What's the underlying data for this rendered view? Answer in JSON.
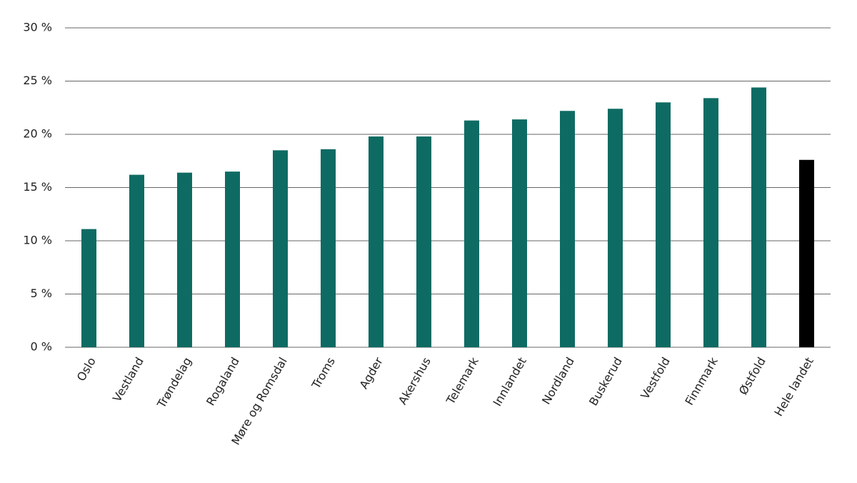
{
  "chart_data": {
    "type": "bar",
    "categories": [
      "Oslo",
      "Vestland",
      "Trøndelag",
      "Rogaland",
      "Møre og Romsdal",
      "Troms",
      "Agder",
      "Akershus",
      "Telemark",
      "Innlandet",
      "Nordland",
      "Buskerud",
      "Vestfold",
      "Finnmark",
      "Østfold",
      "Hele landet"
    ],
    "values": [
      11.1,
      16.2,
      16.4,
      16.5,
      18.5,
      18.6,
      19.8,
      19.8,
      21.3,
      21.4,
      22.2,
      22.4,
      23.0,
      23.4,
      24.4,
      17.6
    ],
    "colors": [
      "#0e6b63",
      "#0e6b63",
      "#0e6b63",
      "#0e6b63",
      "#0e6b63",
      "#0e6b63",
      "#0e6b63",
      "#0e6b63",
      "#0e6b63",
      "#0e6b63",
      "#0e6b63",
      "#0e6b63",
      "#0e6b63",
      "#0e6b63",
      "#0e6b63",
      "#000000"
    ],
    "ylim": [
      0,
      30
    ],
    "yticks": [
      {
        "value": 0,
        "label": "0 %"
      },
      {
        "value": 5,
        "label": "5 %"
      },
      {
        "value": 10,
        "label": "10 %"
      },
      {
        "value": 15,
        "label": "15 %"
      },
      {
        "value": 20,
        "label": "20 %"
      },
      {
        "value": 25,
        "label": "25 %"
      },
      {
        "value": 30,
        "label": "30 %"
      }
    ],
    "grid": true
  }
}
